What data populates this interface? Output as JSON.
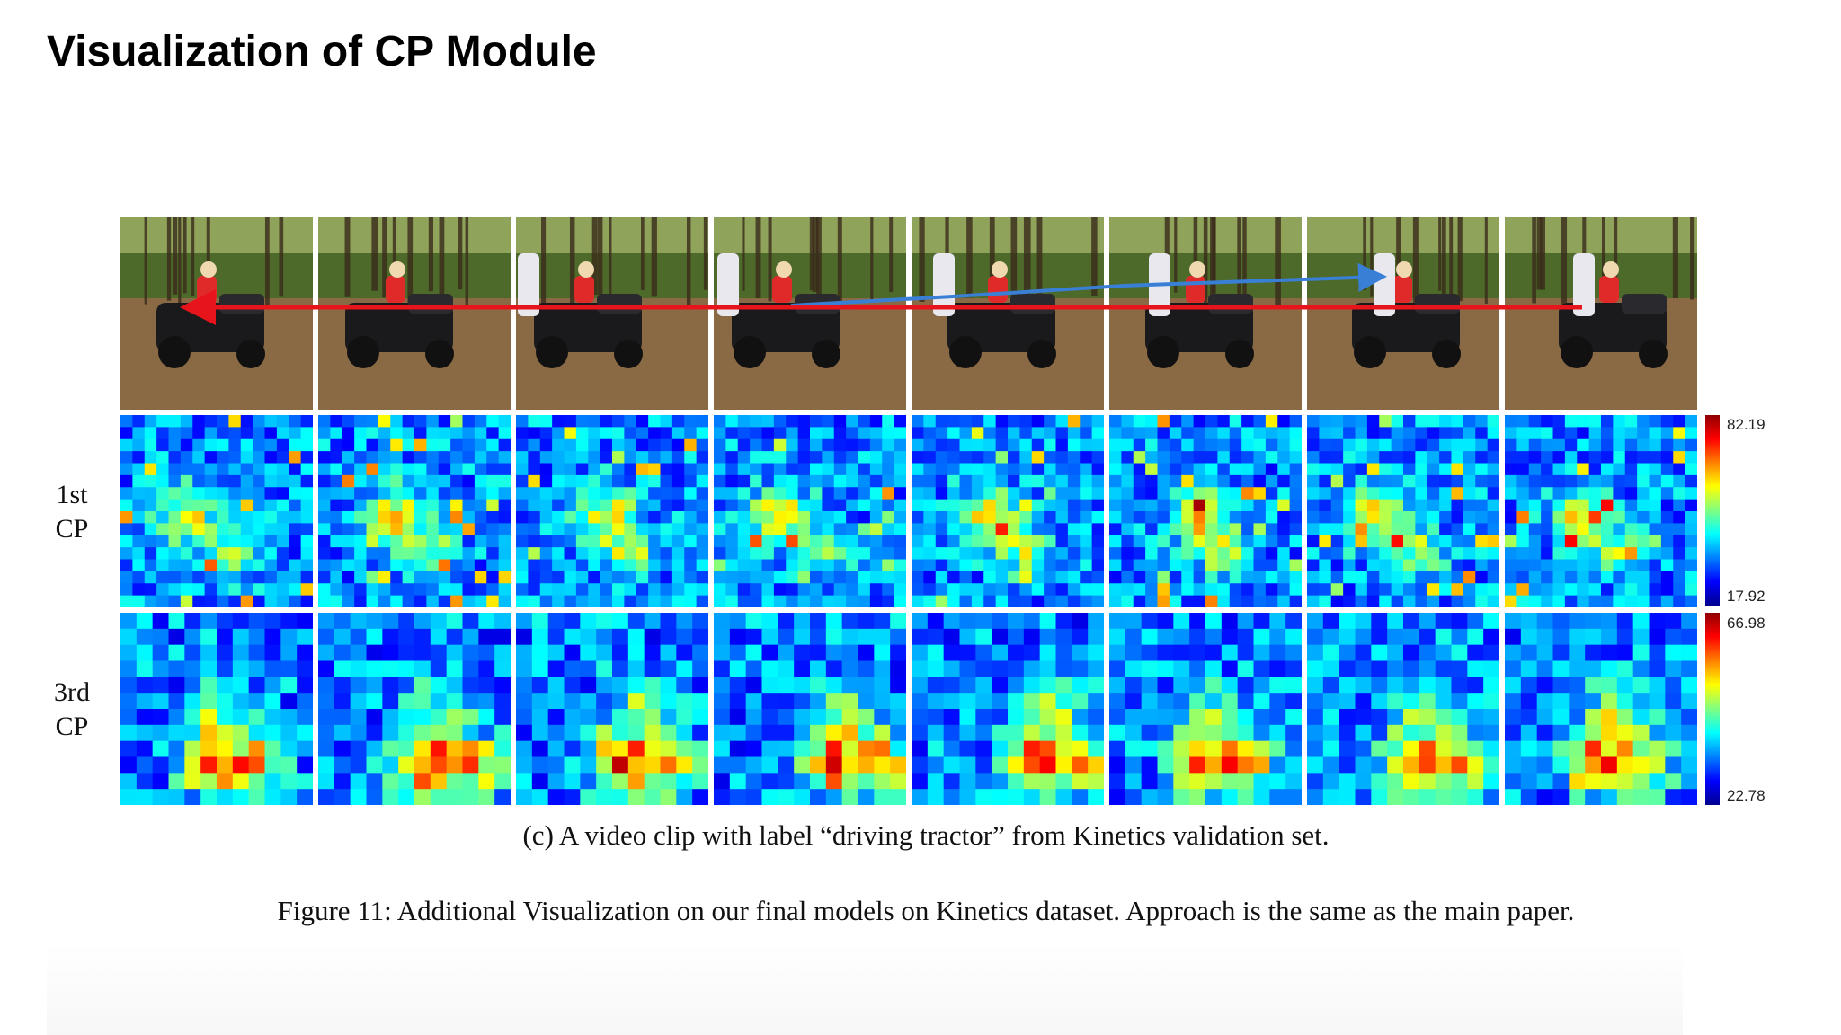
{
  "slide": {
    "title": "Visualization of CP Module"
  },
  "figure": {
    "rows": [
      {
        "id": "frames",
        "label": ""
      },
      {
        "id": "cp1",
        "label_line1": "1st",
        "label_line2": "CP",
        "colorbar_max": "82.19",
        "colorbar_min": "17.92"
      },
      {
        "id": "cp3",
        "label_line1": "3rd",
        "label_line2": "CP",
        "colorbar_max": "66.98",
        "colorbar_min": "22.78"
      }
    ],
    "frame_count": 8,
    "subcaption": "(c) A video clip with label “driving tractor” from Kinetics validation set.",
    "caption": "Figure 11: Additional Visualization on our final models on Kinetics dataset. Approach is the same as the main paper."
  },
  "colors": {
    "track_primary": "#e8141c",
    "track_secondary": "#3a7fd6",
    "heat_low": "#00008f",
    "heat_high": "#8f0000"
  }
}
